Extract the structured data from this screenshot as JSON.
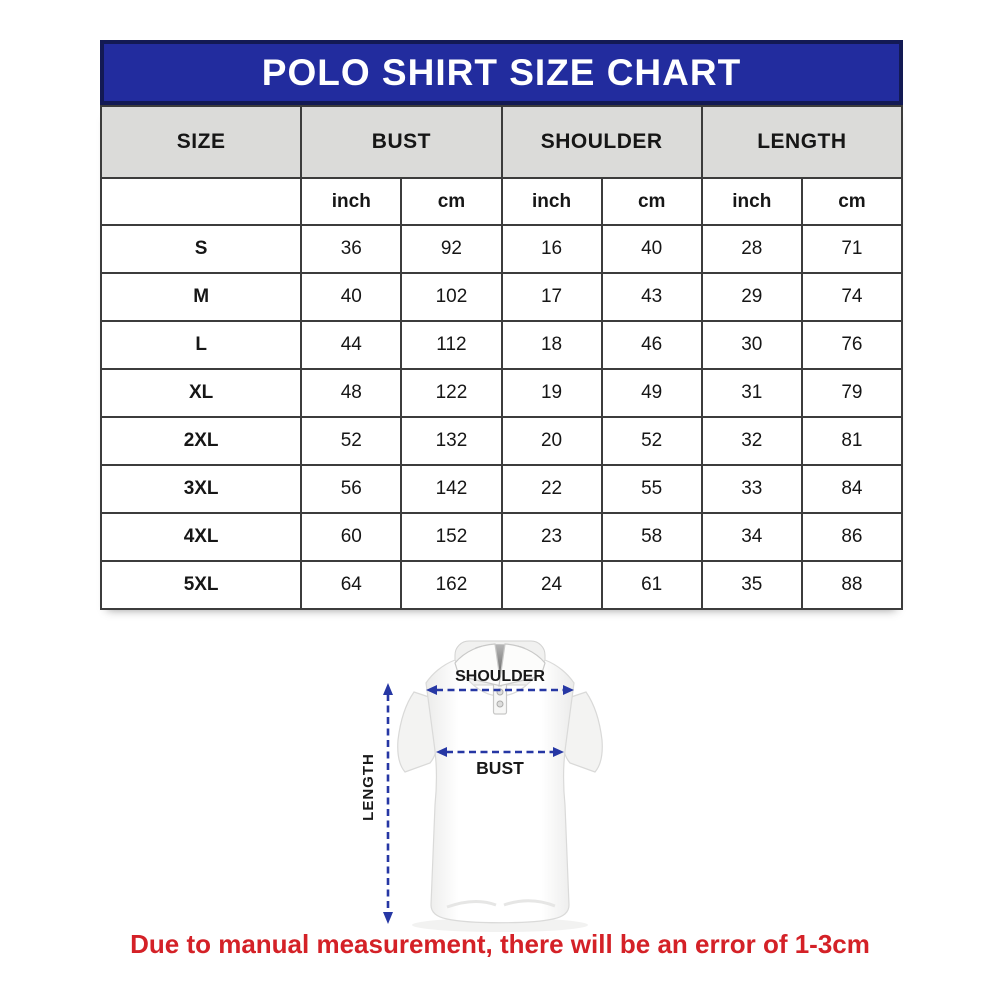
{
  "banner": {
    "title": "POLO SHIRT SIZE CHART"
  },
  "colors": {
    "banner_bg": "#222c9e",
    "banner_border": "#131a54",
    "header_bg": "#dbdbd9",
    "grid_color": "#3c3c3c",
    "arrow_blue": "#2637a4",
    "note_color": "#d42127"
  },
  "chart_data": {
    "type": "table",
    "title": "POLO SHIRT SIZE CHART",
    "group_headers": [
      "SIZE",
      "BUST",
      "SHOULDER",
      "LENGTH"
    ],
    "unit_headers": [
      "inch",
      "cm",
      "inch",
      "cm",
      "inch",
      "cm"
    ],
    "rows": [
      {
        "size": "S",
        "values": [
          "36",
          "92",
          "16",
          "40",
          "28",
          "71"
        ]
      },
      {
        "size": "M",
        "values": [
          "40",
          "102",
          "17",
          "43",
          "29",
          "74"
        ]
      },
      {
        "size": "L",
        "values": [
          "44",
          "112",
          "18",
          "46",
          "30",
          "76"
        ]
      },
      {
        "size": "XL",
        "values": [
          "48",
          "122",
          "19",
          "49",
          "31",
          "79"
        ]
      },
      {
        "size": "2XL",
        "values": [
          "52",
          "132",
          "20",
          "52",
          "32",
          "81"
        ]
      },
      {
        "size": "3XL",
        "values": [
          "56",
          "142",
          "22",
          "55",
          "33",
          "84"
        ]
      },
      {
        "size": "4XL",
        "values": [
          "60",
          "152",
          "23",
          "58",
          "34",
          "86"
        ]
      },
      {
        "size": "5XL",
        "values": [
          "64",
          "162",
          "24",
          "61",
          "35",
          "88"
        ]
      }
    ]
  },
  "diagram": {
    "labels": {
      "shoulder": "SHOULDER",
      "bust": "BUST",
      "length": "LENGTH"
    }
  },
  "note": {
    "text": "Due to manual measurement, there will be an error of 1-3cm"
  }
}
